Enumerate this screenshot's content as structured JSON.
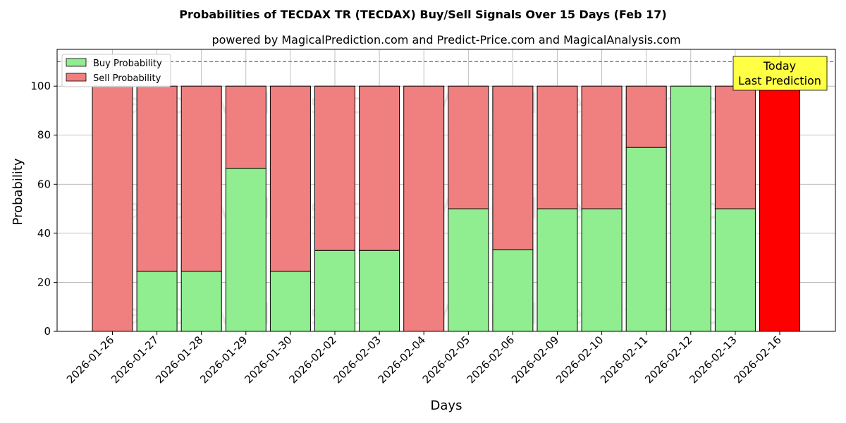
{
  "chart_data": {
    "type": "bar",
    "stacked": true,
    "title": "Probabilities of TECDAX TR (TECDAX) Buy/Sell Signals Over 15 Days (Feb 17)",
    "subtitle": "powered by MagicalPrediction.com and Predict-Price.com and MagicalAnalysis.com",
    "xlabel": "Days",
    "ylabel": "Probability",
    "ylim": [
      0,
      115
    ],
    "yticks": [
      0,
      20,
      40,
      60,
      80,
      100
    ],
    "reference_line": 110,
    "grid": true,
    "legend_placement": "top-left",
    "categories": [
      "2026-01-26",
      "2026-01-27",
      "2026-01-28",
      "2026-01-29",
      "2026-01-30",
      "2026-02-02",
      "2026-02-03",
      "2026-02-04",
      "2026-02-05",
      "2026-02-06",
      "2026-02-09",
      "2026-02-10",
      "2026-02-11",
      "2026-02-12",
      "2026-02-13",
      "2026-02-16"
    ],
    "series": [
      {
        "name": "Buy Probability",
        "color": "#90ee90",
        "values": [
          0,
          24.5,
          24.5,
          66.5,
          24.5,
          33,
          33,
          0,
          50,
          33.3,
          50,
          50,
          75,
          100,
          50,
          0
        ]
      },
      {
        "name": "Sell Probability",
        "color": "#f08080",
        "values": [
          100,
          75.5,
          75.5,
          33.5,
          75.5,
          67,
          67,
          100,
          50,
          66.7,
          50,
          50,
          25,
          0,
          50,
          100
        ]
      }
    ],
    "highlight": {
      "index": 15,
      "color": "#ff0000"
    },
    "annotation": {
      "lines": [
        "Today",
        "Last Prediction"
      ],
      "background": "#ffff44"
    },
    "watermarks": [
      "MagicalAnalysis.com",
      "MagicalPrediction.com"
    ]
  }
}
